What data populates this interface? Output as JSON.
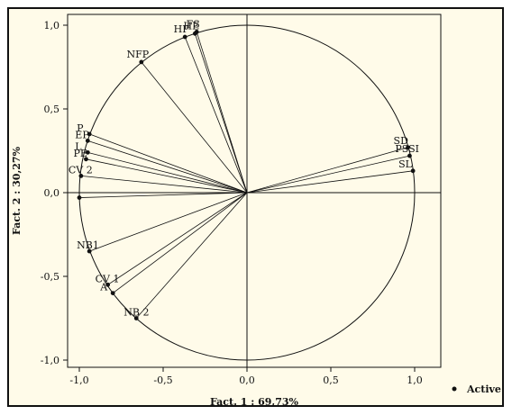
{
  "chart_data": {
    "type": "scatter",
    "xlabel": "Fact. 1  : 69,73%",
    "ylabel": "Fact. 2  : 30,27%",
    "xlim": [
      -1.1,
      1.1
    ],
    "ylim": [
      -1.1,
      1.1
    ],
    "x_ticks": [
      "-1,0",
      "-0,5",
      "0,0",
      "0,5",
      "1,0"
    ],
    "y_ticks": [
      "1,0",
      "0,5",
      "0,0",
      "-0,5",
      "-1,0"
    ],
    "unit_circle": true,
    "legend": {
      "label": "Active",
      "position": "right"
    },
    "colors": {
      "background": "#fffbe9",
      "frame": "#111111",
      "points": "#111111"
    },
    "points": [
      {
        "label": "FS",
        "x": -0.3,
        "y": 0.96
      },
      {
        "label": "HE",
        "x": -0.31,
        "y": 0.95
      },
      {
        "label": "HP",
        "x": -0.37,
        "y": 0.93
      },
      {
        "label": "NFP",
        "x": -0.63,
        "y": 0.78
      },
      {
        "label": "P",
        "x": -0.94,
        "y": 0.35
      },
      {
        "label": "EP",
        "x": -0.95,
        "y": 0.31
      },
      {
        "label": "L",
        "x": -0.95,
        "y": 0.24
      },
      {
        "label": "PE",
        "x": -0.96,
        "y": 0.2
      },
      {
        "label": "CV 2",
        "x": -0.99,
        "y": 0.1
      },
      {
        "label": "",
        "x": -1.0,
        "y": -0.03
      },
      {
        "label": "NB1",
        "x": -0.94,
        "y": -0.35
      },
      {
        "label": "CV 1",
        "x": -0.83,
        "y": -0.55
      },
      {
        "label": "A",
        "x": -0.8,
        "y": -0.6
      },
      {
        "label": "NB 2",
        "x": -0.66,
        "y": -0.75
      },
      {
        "label": "SD",
        "x": 0.96,
        "y": 0.27
      },
      {
        "label": "PSSI",
        "x": 0.97,
        "y": 0.22
      },
      {
        "label": "SL",
        "x": 0.99,
        "y": 0.13
      }
    ]
  }
}
